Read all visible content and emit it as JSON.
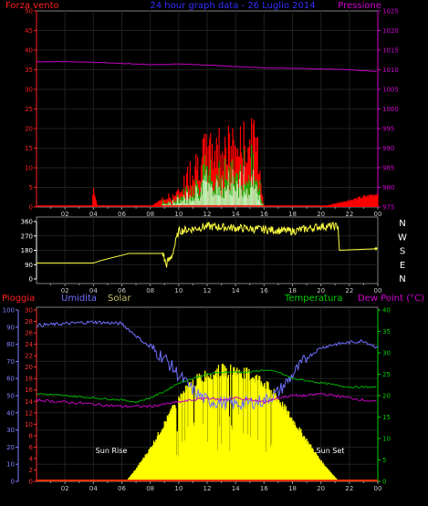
{
  "top_panel": {
    "left_title": "Forza vento",
    "center_title": "24 hour graph data - 26 Luglio 2014",
    "right_title": "Pressione",
    "y_left_ticks": [
      "0",
      "5",
      "10",
      "15",
      "20",
      "25",
      "30",
      "35",
      "40",
      "45",
      "50"
    ],
    "y_right_ticks": [
      "975",
      "980",
      "985",
      "990",
      "995",
      "1000",
      "1005",
      "1010",
      "1015",
      "1020",
      "1025"
    ],
    "x_ticks": [
      "02",
      "04",
      "06",
      "08",
      "10",
      "12",
      "14",
      "16",
      "18",
      "20",
      "22",
      "00"
    ]
  },
  "wind_panel": {
    "y_ticks": [
      "0",
      "90",
      "180",
      "270",
      "360"
    ],
    "compass": [
      "N",
      "W",
      "S",
      "E",
      "N"
    ],
    "x_ticks": [
      "02",
      "04",
      "06",
      "08",
      "10",
      "12",
      "14",
      "16",
      "18",
      "20",
      "22",
      "00"
    ]
  },
  "bottom_panel": {
    "label_pioggia": "Pioggia",
    "label_umidita": "Umidita",
    "label_solar": "Solar",
    "label_temperatura": "Temperatura",
    "label_dewpoint": "Dew Point (°C)",
    "humidity_ticks": [
      "0",
      "10",
      "20",
      "30",
      "40",
      "50",
      "60",
      "70",
      "80",
      "90",
      "100"
    ],
    "rain_ticks": [
      "0",
      "2",
      "4",
      "6",
      "8",
      "10",
      "12",
      "14",
      "16",
      "18",
      "20",
      "22",
      "24",
      "26",
      "28",
      "30"
    ],
    "temp_ticks": [
      "0",
      "5",
      "10",
      "15",
      "20",
      "25",
      "30",
      "35",
      "40"
    ],
    "x_ticks": [
      "02",
      "04",
      "06",
      "08",
      "10",
      "12",
      "14",
      "16",
      "18",
      "20",
      "22",
      "00"
    ],
    "sunrise_label": "Sun Rise",
    "sunset_label": "Sun Set"
  },
  "colors": {
    "background": "#000000",
    "wind_speed": "#ff0000",
    "wind_gust_green": "#00c000",
    "wind_avg_white": "#c8ffc8",
    "pressure": "#c000c0",
    "wind_direction": "#ffff40",
    "humidity": "#7070ff",
    "temperature": "#00b000",
    "dew_point": "#c000c0",
    "solar": "#ffff00",
    "rain": "#ff3000",
    "grid": "#202020"
  },
  "chart_data": [
    {
      "type": "area",
      "title": "24 hour graph data - 26 Luglio 2014",
      "ylabel": "Forza vento",
      "y2label": "Pressione",
      "ylim": [
        0,
        50
      ],
      "y2lim": [
        975,
        1025
      ],
      "x_ticks": [
        "02",
        "04",
        "06",
        "08",
        "10",
        "12",
        "14",
        "16",
        "18",
        "20",
        "22",
        "00"
      ],
      "grid": true,
      "series": [
        {
          "name": "Forza vento",
          "x": [
            0,
            2,
            3.9,
            4,
            4.3,
            8,
            9,
            10,
            11,
            12,
            13,
            14,
            15,
            15.5,
            16,
            18,
            20,
            24
          ],
          "values": [
            0,
            0,
            0,
            6,
            0,
            0,
            3,
            5,
            15,
            20,
            22,
            21,
            23,
            24,
            0,
            0,
            0,
            4
          ]
        },
        {
          "name": "Pressione",
          "x": [
            0,
            2,
            4,
            6,
            8,
            10,
            12,
            14,
            16,
            18,
            20,
            22,
            24
          ],
          "values": [
            1012,
            1012.1,
            1011.9,
            1011.6,
            1011.3,
            1011.5,
            1011.2,
            1010.8,
            1010.5,
            1010.4,
            1010.2,
            1010,
            1009.5
          ]
        }
      ]
    },
    {
      "type": "line",
      "ylim": [
        0,
        360
      ],
      "x_ticks": [
        "02",
        "04",
        "06",
        "08",
        "10",
        "12",
        "14",
        "16",
        "18",
        "20",
        "22",
        "00"
      ],
      "series": [
        {
          "name": "wind direction",
          "x": [
            0,
            4,
            4.5,
            6.5,
            8.9,
            9.1,
            9.5,
            10,
            12,
            14,
            16,
            18,
            20,
            21.2,
            21.3,
            24
          ],
          "values": [
            100,
            100,
            115,
            160,
            160,
            90,
            140,
            300,
            330,
            320,
            310,
            300,
            330,
            330,
            180,
            190
          ]
        }
      ]
    },
    {
      "type": "area",
      "ylabel": "Umidita",
      "y2label": "Dew Point (°C)",
      "ylim": [
        0,
        100
      ],
      "y2lim": [
        0,
        40
      ],
      "x_ticks": [
        "02",
        "04",
        "06",
        "08",
        "10",
        "12",
        "14",
        "16",
        "18",
        "20",
        "22",
        "00"
      ],
      "annotations": [
        "Sun Rise",
        "Sun Set"
      ],
      "series": [
        {
          "name": "Umidita",
          "x": [
            0,
            2,
            4,
            6,
            7,
            8,
            9,
            10,
            11,
            12,
            13,
            14,
            15,
            16,
            17,
            18,
            19,
            20,
            21,
            22,
            23,
            24
          ],
          "values": [
            91,
            92,
            93,
            92,
            85,
            78,
            72,
            62,
            53,
            47,
            46,
            45,
            46,
            47,
            52,
            62,
            72,
            78,
            80,
            81,
            82,
            78
          ]
        },
        {
          "name": "Temperatura",
          "x": [
            0,
            2,
            4,
            6,
            7,
            8,
            9,
            10,
            11,
            12,
            13,
            14,
            15,
            16,
            17,
            18,
            19,
            20,
            21,
            22,
            24
          ],
          "values": [
            20.5,
            20,
            19.5,
            19,
            18.5,
            19.5,
            21,
            23,
            24,
            25,
            25.5,
            25.5,
            25.5,
            26,
            25.5,
            24,
            23.5,
            23,
            22.5,
            22,
            22
          ]
        },
        {
          "name": "Dew Point",
          "x": [
            0,
            2,
            4,
            6,
            8,
            10,
            11,
            12,
            13,
            14,
            15,
            16,
            17,
            18,
            19,
            20,
            22,
            24
          ],
          "values": [
            19,
            18.5,
            18,
            17.5,
            17.5,
            18.5,
            19,
            19.5,
            19,
            19.5,
            19,
            18.5,
            19.5,
            20,
            20,
            20.5,
            19.5,
            18.5
          ]
        },
        {
          "name": "Solar",
          "x": [
            0,
            6.3,
            7,
            8,
            9,
            10,
            11,
            12,
            13,
            14,
            15,
            16,
            17,
            18,
            19,
            20,
            21,
            21.3,
            24
          ],
          "values": [
            0,
            0,
            3,
            8,
            14,
            20,
            24,
            26,
            27,
            27,
            26,
            24,
            20,
            15,
            10,
            5,
            1,
            0,
            0
          ]
        },
        {
          "name": "Pioggia",
          "x": [
            0,
            24
          ],
          "values": [
            0,
            0
          ]
        }
      ]
    }
  ]
}
